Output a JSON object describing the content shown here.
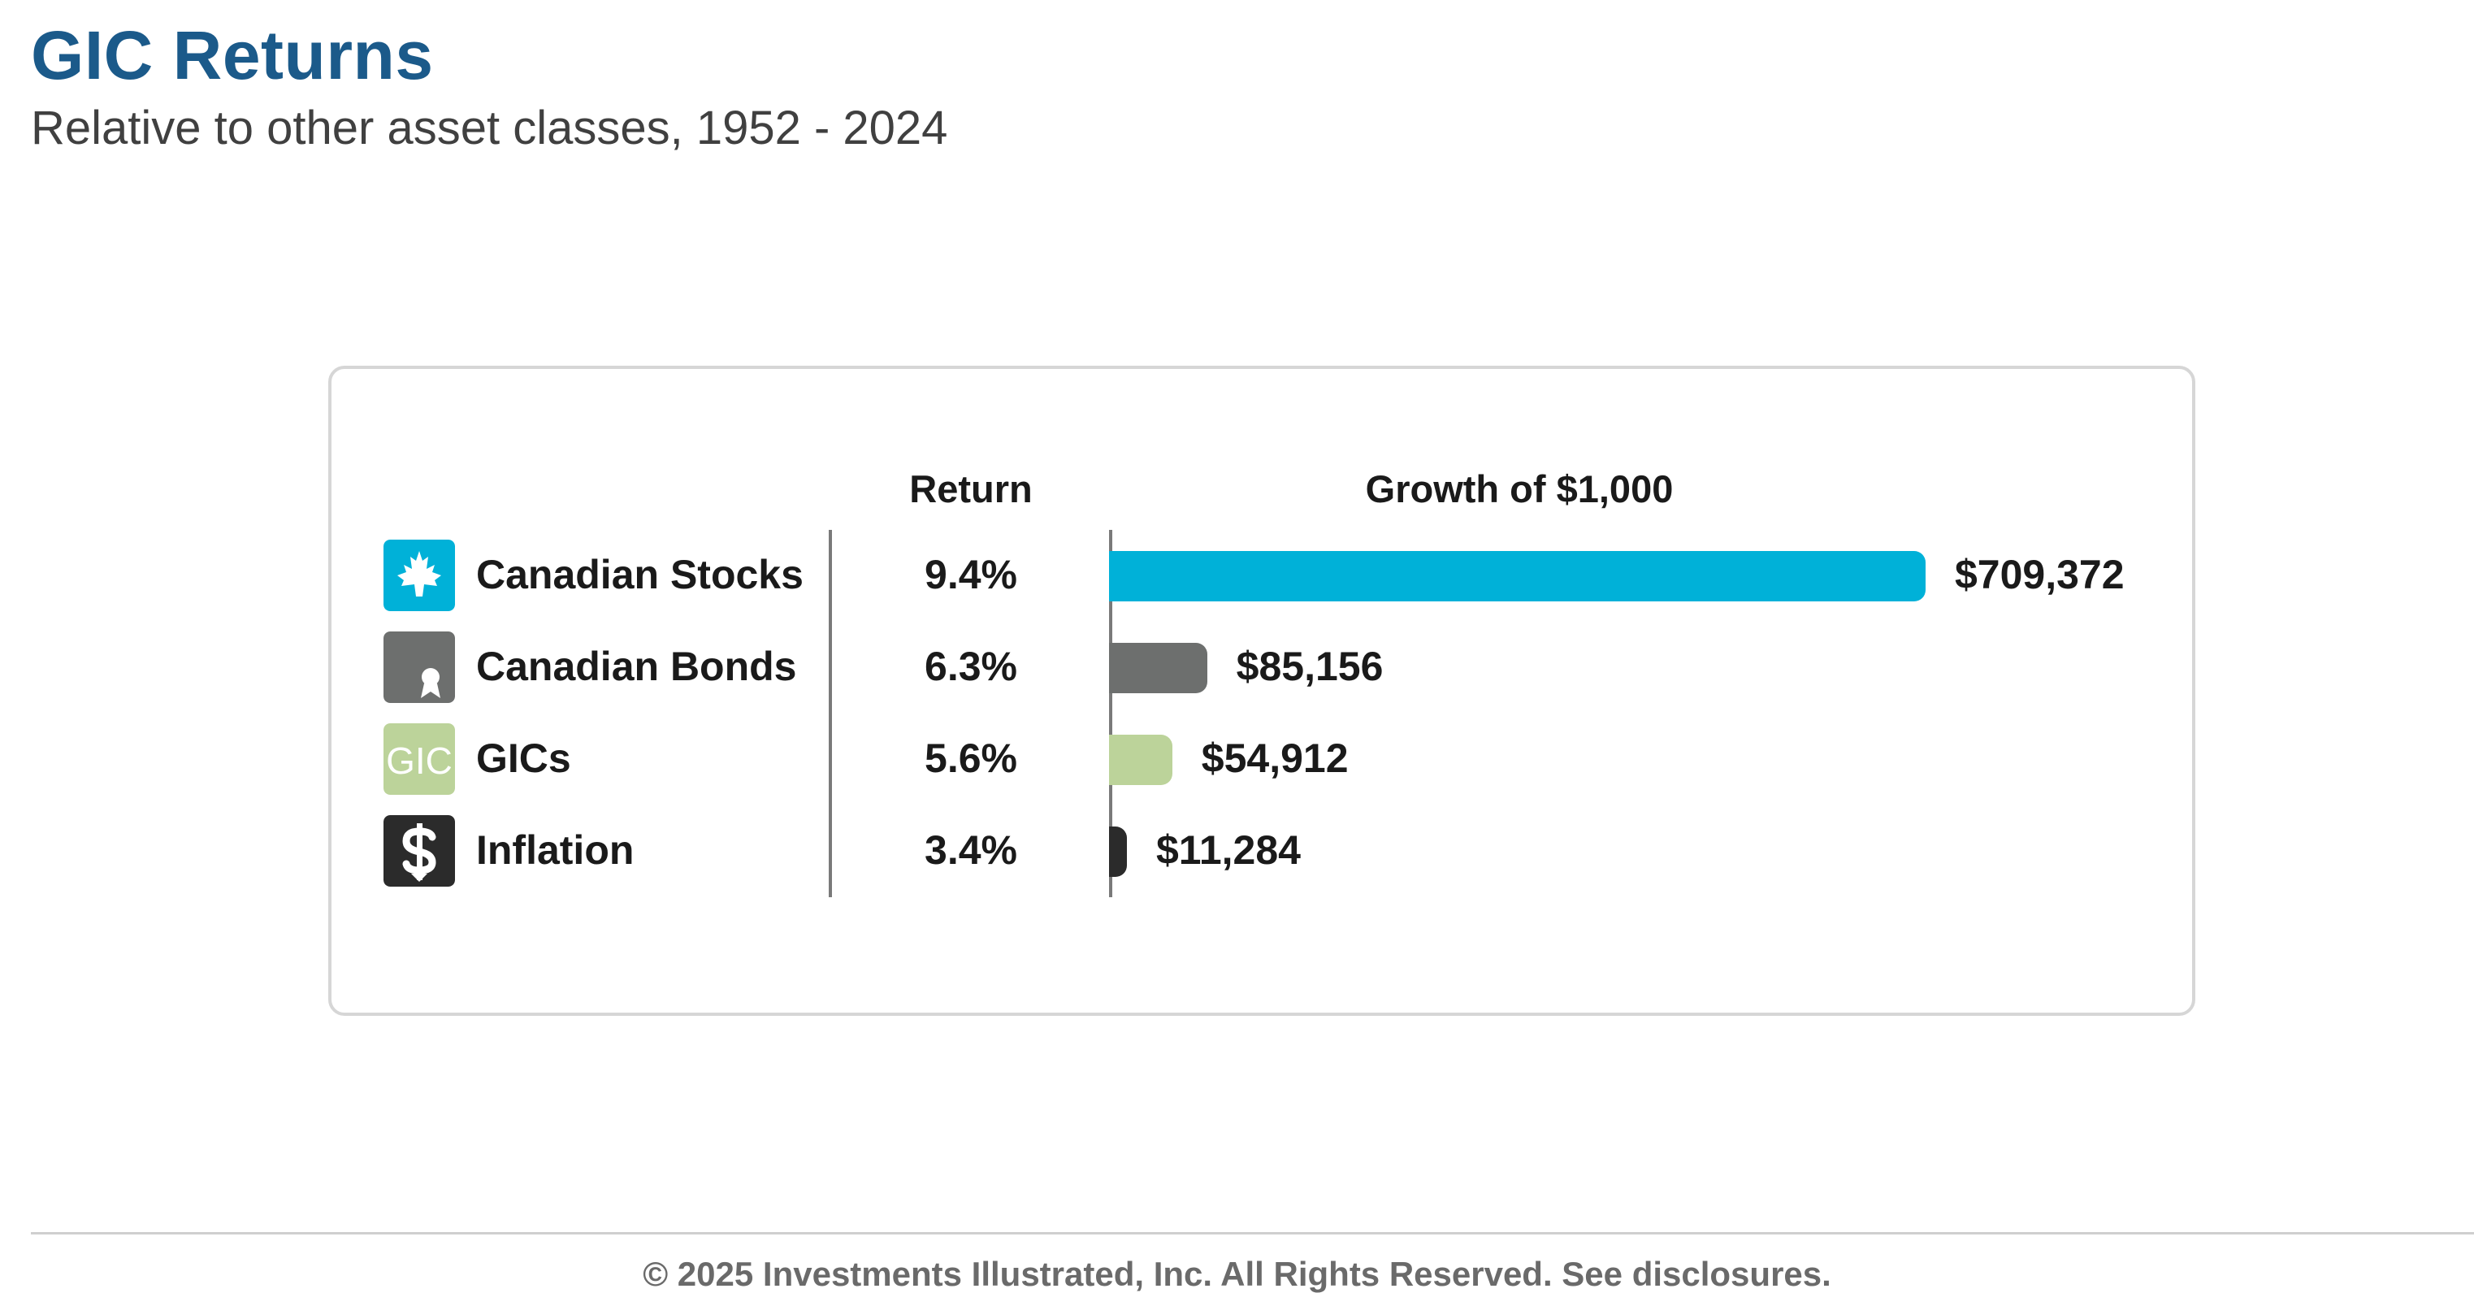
{
  "header": {
    "title": "GIC Returns",
    "subtitle": "Relative to other asset classes, 1952 - 2024"
  },
  "footer": {
    "text": "© 2025 Investments Illustrated, Inc. All Rights Reserved. See disclosures."
  },
  "chart_data": {
    "type": "bar",
    "orientation": "horizontal",
    "title": "GIC Returns",
    "subtitle": "Relative to other asset classes, 1952 - 2024",
    "columns": {
      "return_header": "Return",
      "growth_header": "Growth of $1,000"
    },
    "categories": [
      "Canadian Stocks",
      "Canadian Bonds",
      "GICs",
      "Inflation"
    ],
    "returns": [
      "9.4%",
      "6.3%",
      "5.6%",
      "3.4%"
    ],
    "values": [
      709372,
      85156,
      54912,
      11284
    ],
    "value_labels": [
      "$709,372",
      "$85,156",
      "$54,912",
      "$11,284"
    ],
    "colors": [
      "#00b1d8",
      "#6d6f6e",
      "#bcd39a",
      "#2b2b2b"
    ],
    "icons": [
      "maple-leaf-icon",
      "bond-certificate-icon",
      "gic-text-icon",
      "dollar-sign-icon"
    ],
    "icon_text": {
      "gic": "GIC"
    },
    "xlim": [
      0,
      709372
    ],
    "grid": false,
    "legend": "none"
  }
}
